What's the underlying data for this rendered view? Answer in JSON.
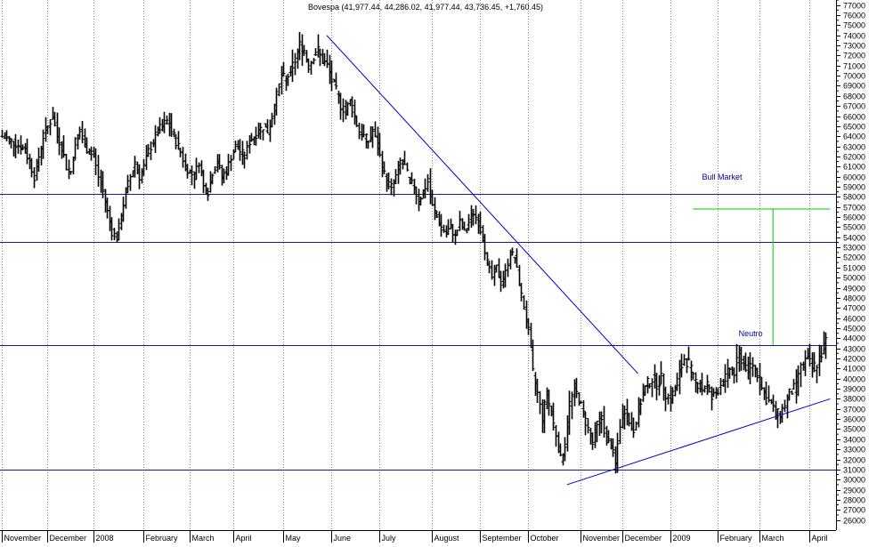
{
  "chart_data": {
    "type": "ohlc",
    "title": "Bovespa (41,977.44, 44,286.02, 41,977.44, 43,736.45, +1,760.45)",
    "ylim": [
      25000,
      77500
    ],
    "y_ticks": [
      26000,
      27000,
      28000,
      29000,
      30000,
      31000,
      32000,
      33000,
      34000,
      35000,
      36000,
      37000,
      38000,
      39000,
      40000,
      41000,
      42000,
      43000,
      44000,
      45000,
      46000,
      47000,
      48000,
      49000,
      50000,
      51000,
      52000,
      53000,
      54000,
      55000,
      56000,
      57000,
      58000,
      59000,
      60000,
      61000,
      62000,
      63000,
      64000,
      65000,
      66000,
      67000,
      68000,
      69000,
      70000,
      71000,
      72000,
      73000,
      74000,
      75000,
      76000,
      77000
    ],
    "months": [
      {
        "label": "November",
        "start": 0
      },
      {
        "label": "December",
        "start": 20
      },
      {
        "label": "2008",
        "start": 40
      },
      {
        "label": "February",
        "start": 62
      },
      {
        "label": "March",
        "start": 82
      },
      {
        "label": "April",
        "start": 101
      },
      {
        "label": "May",
        "start": 123
      },
      {
        "label": "June",
        "start": 144
      },
      {
        "label": "July",
        "start": 165
      },
      {
        "label": "August",
        "start": 188
      },
      {
        "label": "September",
        "start": 209
      },
      {
        "label": "October",
        "start": 230
      },
      {
        "label": "November",
        "start": 253
      },
      {
        "label": "December",
        "start": 271
      },
      {
        "label": "2009",
        "start": 292
      },
      {
        "label": "February",
        "start": 313
      },
      {
        "label": "March",
        "start": 331
      },
      {
        "label": "April",
        "start": 353
      }
    ],
    "x_max": 363,
    "close_keypoints": [
      [
        0,
        64000
      ],
      [
        4,
        63500
      ],
      [
        8,
        63000
      ],
      [
        10,
        62500
      ],
      [
        12,
        61500
      ],
      [
        14,
        60000
      ],
      [
        16,
        62000
      ],
      [
        18,
        64000
      ],
      [
        20,
        65000
      ],
      [
        22,
        66000
      ],
      [
        24,
        64000
      ],
      [
        26,
        63000
      ],
      [
        28,
        61000
      ],
      [
        30,
        60500
      ],
      [
        32,
        63500
      ],
      [
        34,
        64500
      ],
      [
        36,
        63000
      ],
      [
        38,
        62500
      ],
      [
        40,
        62000
      ],
      [
        42,
        60000
      ],
      [
        44,
        58500
      ],
      [
        46,
        56500
      ],
      [
        48,
        54500
      ],
      [
        50,
        54000
      ],
      [
        52,
        56000
      ],
      [
        54,
        58500
      ],
      [
        56,
        60000
      ],
      [
        58,
        61500
      ],
      [
        60,
        60000
      ],
      [
        62,
        61000
      ],
      [
        64,
        62500
      ],
      [
        66,
        63500
      ],
      [
        68,
        64500
      ],
      [
        70,
        65000
      ],
      [
        72,
        65500
      ],
      [
        74,
        64500
      ],
      [
        76,
        63500
      ],
      [
        78,
        62500
      ],
      [
        80,
        61000
      ],
      [
        82,
        60500
      ],
      [
        84,
        60000
      ],
      [
        86,
        61500
      ],
      [
        88,
        59000
      ],
      [
        90,
        58500
      ],
      [
        92,
        60500
      ],
      [
        94,
        61500
      ],
      [
        96,
        60000
      ],
      [
        98,
        60500
      ],
      [
        100,
        62000
      ],
      [
        102,
        63000
      ],
      [
        104,
        62500
      ],
      [
        106,
        62000
      ],
      [
        108,
        63500
      ],
      [
        110,
        64000
      ],
      [
        112,
        64500
      ],
      [
        114,
        65000
      ],
      [
        116,
        64500
      ],
      [
        118,
        66000
      ],
      [
        120,
        68000
      ],
      [
        122,
        70000
      ],
      [
        124,
        69500
      ],
      [
        126,
        70500
      ],
      [
        128,
        71500
      ],
      [
        130,
        73000
      ],
      [
        132,
        72500
      ],
      [
        134,
        71000
      ],
      [
        136,
        72000
      ],
      [
        138,
        72500
      ],
      [
        140,
        71500
      ],
      [
        142,
        71000
      ],
      [
        144,
        69500
      ],
      [
        146,
        68500
      ],
      [
        148,
        67000
      ],
      [
        150,
        66500
      ],
      [
        152,
        67500
      ],
      [
        154,
        66000
      ],
      [
        156,
        64500
      ],
      [
        158,
        64000
      ],
      [
        160,
        63500
      ],
      [
        162,
        64500
      ],
      [
        164,
        63000
      ],
      [
        166,
        61000
      ],
      [
        168,
        59500
      ],
      [
        170,
        59000
      ],
      [
        172,
        60000
      ],
      [
        174,
        61500
      ],
      [
        176,
        61000
      ],
      [
        178,
        59500
      ],
      [
        180,
        59000
      ],
      [
        182,
        57500
      ],
      [
        184,
        58500
      ],
      [
        186,
        59500
      ],
      [
        188,
        57000
      ],
      [
        190,
        56000
      ],
      [
        192,
        55000
      ],
      [
        194,
        54500
      ],
      [
        196,
        55000
      ],
      [
        198,
        54000
      ],
      [
        200,
        55500
      ],
      [
        202,
        54500
      ],
      [
        204,
        55500
      ],
      [
        206,
        56500
      ],
      [
        208,
        55500
      ],
      [
        210,
        54000
      ],
      [
        212,
        51500
      ],
      [
        214,
        50000
      ],
      [
        216,
        51000
      ],
      [
        218,
        49500
      ],
      [
        220,
        50500
      ],
      [
        222,
        52500
      ],
      [
        224,
        52000
      ],
      [
        226,
        49500
      ],
      [
        228,
        47000
      ],
      [
        230,
        44500
      ],
      [
        232,
        40500
      ],
      [
        234,
        38500
      ],
      [
        236,
        36000
      ],
      [
        238,
        38500
      ],
      [
        240,
        36500
      ],
      [
        242,
        34500
      ],
      [
        244,
        32000
      ],
      [
        246,
        33500
      ],
      [
        248,
        37500
      ],
      [
        250,
        39000
      ],
      [
        252,
        38000
      ],
      [
        254,
        36500
      ],
      [
        256,
        35000
      ],
      [
        258,
        33500
      ],
      [
        260,
        35500
      ],
      [
        262,
        36000
      ],
      [
        264,
        34000
      ],
      [
        266,
        33500
      ],
      [
        268,
        31500
      ],
      [
        270,
        35500
      ],
      [
        272,
        37000
      ],
      [
        274,
        35500
      ],
      [
        276,
        35000
      ],
      [
        278,
        37000
      ],
      [
        280,
        38500
      ],
      [
        282,
        39500
      ],
      [
        284,
        40000
      ],
      [
        286,
        39500
      ],
      [
        288,
        40000
      ],
      [
        290,
        38500
      ],
      [
        292,
        38000
      ],
      [
        294,
        39000
      ],
      [
        296,
        40500
      ],
      [
        298,
        42000
      ],
      [
        300,
        41500
      ],
      [
        302,
        40000
      ],
      [
        304,
        39500
      ],
      [
        306,
        39000
      ],
      [
        308,
        39500
      ],
      [
        310,
        38000
      ],
      [
        312,
        38500
      ],
      [
        314,
        39500
      ],
      [
        316,
        40000
      ],
      [
        318,
        41000
      ],
      [
        320,
        40500
      ],
      [
        322,
        42500
      ],
      [
        324,
        41500
      ],
      [
        326,
        41000
      ],
      [
        328,
        41500
      ],
      [
        330,
        40500
      ],
      [
        332,
        39000
      ],
      [
        334,
        38000
      ],
      [
        336,
        37500
      ],
      [
        338,
        36500
      ],
      [
        340,
        36500
      ],
      [
        342,
        37500
      ],
      [
        344,
        38500
      ],
      [
        346,
        39000
      ],
      [
        348,
        40500
      ],
      [
        350,
        41500
      ],
      [
        352,
        42000
      ],
      [
        354,
        41000
      ],
      [
        356,
        41500
      ],
      [
        358,
        42500
      ],
      [
        360,
        43736
      ]
    ],
    "horizontal_lines": [
      58300,
      53500,
      43300,
      31000
    ],
    "trendlines": [
      {
        "from": [
          142,
          74000
        ],
        "to": [
          278,
          40500
        ],
        "color": "#0000cc"
      },
      {
        "from": [
          247,
          29500
        ],
        "to": [
          362,
          38000
        ],
        "color": "#0000cc"
      }
    ],
    "measure": {
      "color": "#00cc00",
      "top_y": 56800,
      "bottom_y": 43300,
      "x_left": 302,
      "x_right": 362,
      "x_vertical": 337
    },
    "annotations": [
      {
        "text": "Bull Market",
        "x": 306,
        "y": 59700
      },
      {
        "text": "Neutro",
        "x": 322,
        "y": 44200
      }
    ]
  }
}
